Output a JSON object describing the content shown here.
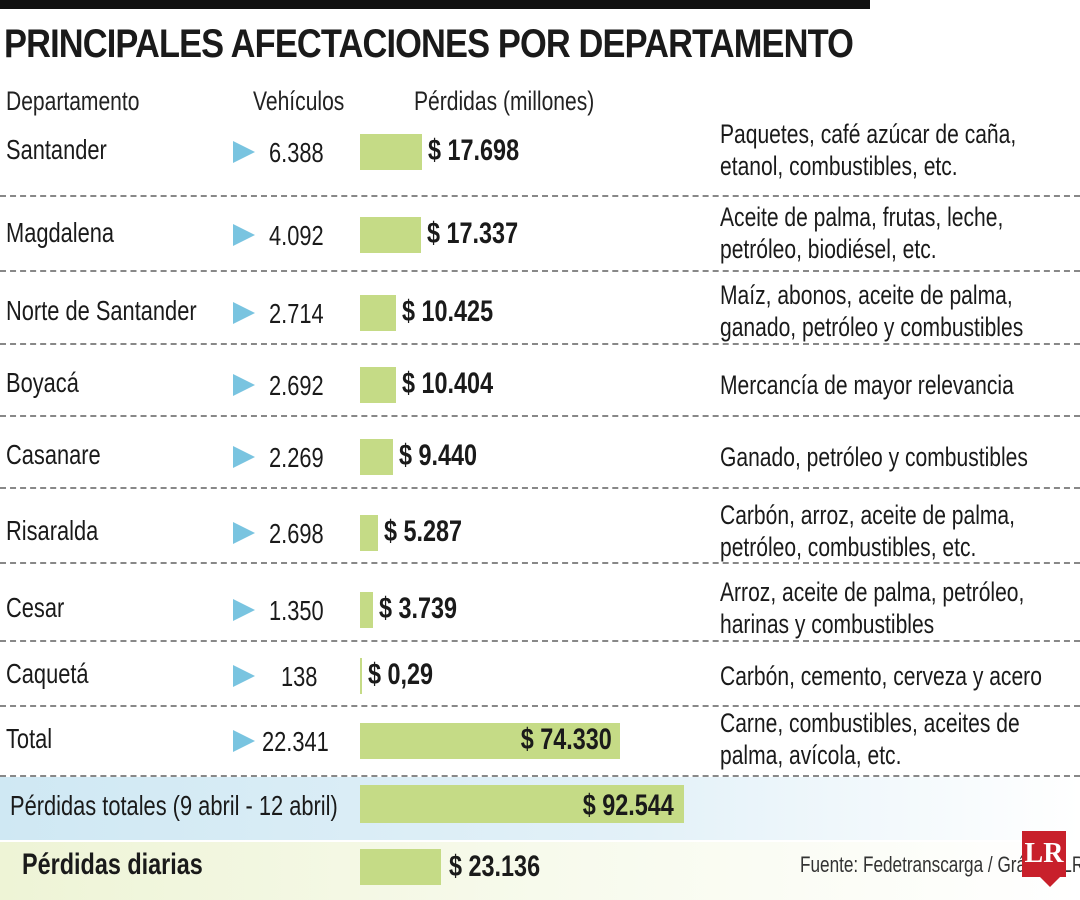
{
  "title": "PRINCIPALES AFECTACIONES POR DEPARTAMENTO",
  "headers": {
    "dept": "Departamento",
    "vehicles": "Vehículos",
    "losses": "Pérdidas (millones)"
  },
  "colors": {
    "bar": "#c5db86",
    "arrow": "#79c4e0",
    "band_total": "#cfe8f3",
    "band_daily": "#eef4d6",
    "logo": "#c8202b"
  },
  "chart_data": {
    "type": "bar",
    "orientation": "horizontal",
    "categories": [
      "Santander",
      "Magdalena",
      "Norte de Santander",
      "Boyacá",
      "Casanare",
      "Risaralda",
      "Cesar",
      "Caquetá",
      "Total"
    ],
    "values": [
      17698,
      17337,
      10425,
      10404,
      9440,
      5287,
      3739,
      0.29,
      74330
    ],
    "value_labels": [
      "$ 17.698",
      "$ 17.337",
      "$ 10.425",
      "$ 10.404",
      "$ 9.440",
      "$ 5.287",
      "$ 3.739",
      "$ 0,29",
      "$ 74.330"
    ],
    "vehicles": [
      "6.388",
      "4.092",
      "2.714",
      "2.692",
      "2.269",
      "2.698",
      "1.350",
      "138",
      "22.341"
    ],
    "descriptions": [
      [
        "Paquetes, café azúcar de caña,",
        "etanol, combustibles, etc."
      ],
      [
        "Aceite de palma, frutas, leche,",
        "petróleo, biodiésel, etc."
      ],
      [
        "Maíz, abonos, aceite de palma,",
        "ganado, petróleo y combustibles"
      ],
      [
        "Mercancía de mayor relevancia"
      ],
      [
        "Ganado, petróleo y combustibles"
      ],
      [
        "Carbón, arroz, aceite de palma,",
        "petróleo, combustibles, etc."
      ],
      [
        "Arroz, aceite de palma, petróleo,",
        "harinas y combustibles"
      ],
      [
        "Carbón, cemento, cerveza y acero"
      ],
      [
        "Carne, combustibles, aceites de",
        "palma, avícola, etc."
      ]
    ],
    "unit": "millones"
  },
  "summary": {
    "total_label": "Pérdidas totales (9 abril - 12 abril)",
    "total_value": 92544,
    "total_value_label": "$ 92.544",
    "daily_label": "Pérdidas diarias",
    "daily_value": 23136,
    "daily_value_label": "$ 23.136"
  },
  "source": "Fuente: Fedetranscarga / Gráfico: LR-AA",
  "logo": "LR"
}
